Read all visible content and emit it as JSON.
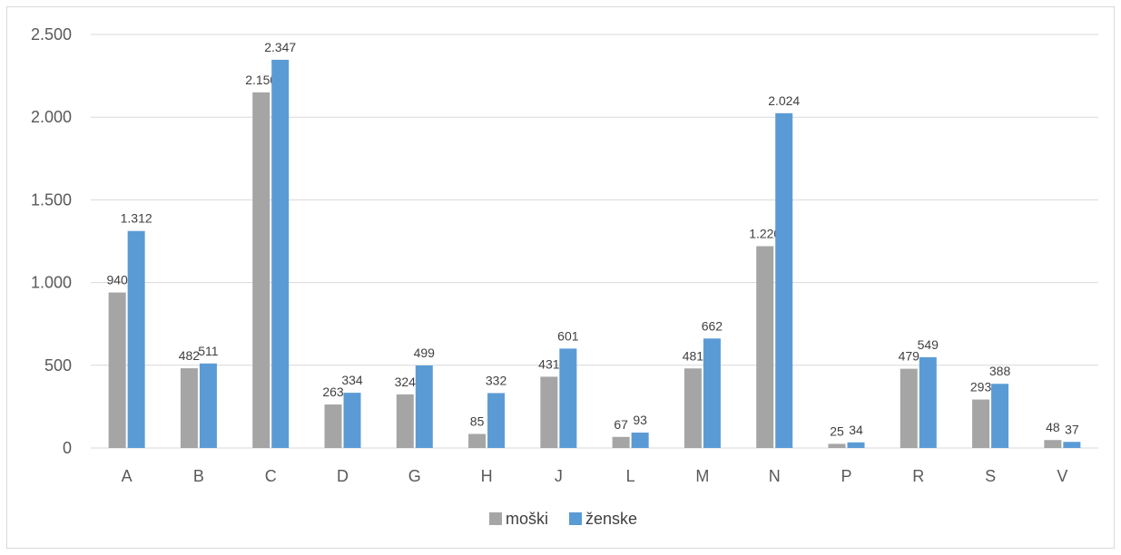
{
  "chart_data": {
    "type": "bar",
    "categories": [
      "A",
      "B",
      "C",
      "D",
      "G",
      "H",
      "J",
      "L",
      "M",
      "N",
      "P",
      "R",
      "S",
      "V"
    ],
    "series": [
      {
        "name": "moški",
        "color": "#a5a5a5",
        "values": [
          940,
          482,
          2150,
          263,
          324,
          85,
          431,
          67,
          481,
          1220,
          25,
          479,
          293,
          48
        ],
        "labels": [
          "940",
          "482",
          "2.150",
          "263",
          "324",
          "85",
          "431",
          "67",
          "481",
          "1.220",
          "25",
          "479",
          "293",
          "48"
        ]
      },
      {
        "name": "ženske",
        "color": "#5b9bd5",
        "values": [
          1312,
          511,
          2347,
          334,
          499,
          332,
          601,
          93,
          662,
          2024,
          34,
          549,
          388,
          37
        ],
        "labels": [
          "1.312",
          "511",
          "2.347",
          "334",
          "499",
          "332",
          "601",
          "93",
          "662",
          "2.024",
          "34",
          "549",
          "388",
          "37"
        ]
      }
    ],
    "ylim": [
      0,
      2500
    ],
    "yticks": [
      0,
      500,
      1000,
      1500,
      2000,
      2500
    ],
    "ytick_labels": [
      "0",
      "500",
      "1.000",
      "1.500",
      "2.000",
      "2.500"
    ],
    "grid": true,
    "legend": "bottom"
  }
}
